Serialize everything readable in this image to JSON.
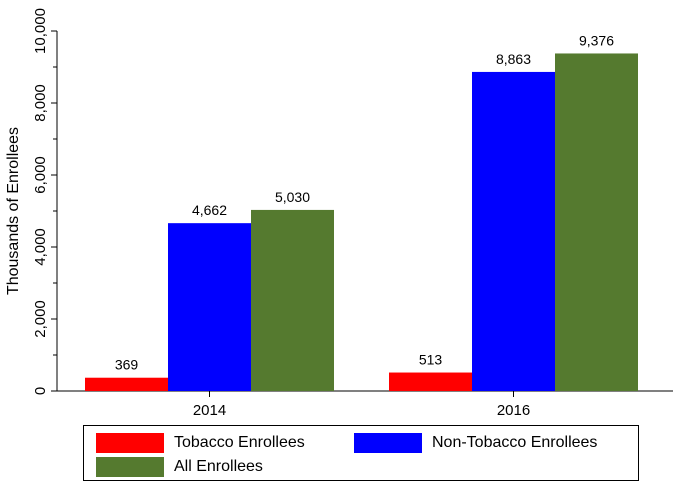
{
  "chart_data": {
    "type": "bar",
    "title": "",
    "xlabel": "",
    "ylabel": "Thousands of Enrollees",
    "ylim": [
      0,
      10000
    ],
    "y_ticks": [
      0,
      2000,
      4000,
      6000,
      8000,
      10000
    ],
    "y_tick_labels": [
      "0",
      "2,000",
      "4,000",
      "6,000",
      "8,000",
      "10,000"
    ],
    "categories": [
      "2014",
      "2016"
    ],
    "series": [
      {
        "name": "Tobacco Enrollees",
        "color": "#ff0000",
        "values": [
          369,
          513
        ],
        "labels": [
          "369",
          "513"
        ]
      },
      {
        "name": "Non-Tobacco Enrollees",
        "color": "#0000ff",
        "values": [
          4662,
          8863
        ],
        "labels": [
          "4,662",
          "8,863"
        ]
      },
      {
        "name": "All Enrollees",
        "color": "#557a2f",
        "values": [
          5030,
          9376
        ],
        "labels": [
          "5,030",
          "9,376"
        ]
      }
    ],
    "legend_position": "bottom",
    "grid": false
  }
}
